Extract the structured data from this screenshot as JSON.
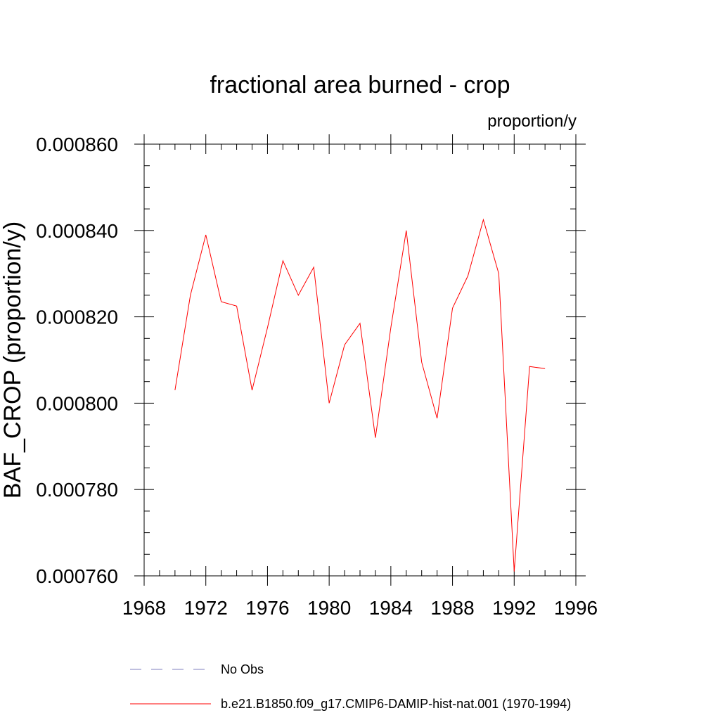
{
  "chart_data": {
    "type": "line",
    "title": "fractional area burned - crop",
    "units_label": "proportion/y",
    "ylabel": "BAF_CROP  (proportion/y)",
    "xlabel": "",
    "xlim": [
      1968,
      1996
    ],
    "ylim": [
      0.00076,
      0.00086
    ],
    "x_ticks": [
      1968,
      1972,
      1976,
      1980,
      1984,
      1988,
      1992,
      1996
    ],
    "x_tick_labels": [
      "1968",
      "1972",
      "1976",
      "1980",
      "1984",
      "1988",
      "1992",
      "1996"
    ],
    "y_ticks": [
      0.00076,
      0.00078,
      0.0008,
      0.00082,
      0.00084,
      0.00086
    ],
    "y_tick_labels": [
      "0.000760",
      "0.000780",
      "0.000800",
      "0.000820",
      "0.000840",
      "0.000860"
    ],
    "grid": false,
    "legend_position": "bottom",
    "legend": [
      {
        "label": "No Obs",
        "color": "#7f7fbf",
        "style": "dashed"
      },
      {
        "label": "b.e21.B1850.f09_g17.CMIP6-DAMIP-hist-nat.001 (1970-1994)",
        "color": "#ff0000",
        "style": "solid"
      }
    ],
    "series": [
      {
        "color": "#ff0000",
        "x": [
          1970,
          1971,
          1972,
          1973,
          1974,
          1975,
          1976,
          1977,
          1978,
          1979,
          1980,
          1981,
          1982,
          1983,
          1984,
          1985,
          1986,
          1987,
          1988,
          1989,
          1990,
          1991,
          1992,
          1993,
          1994
        ],
        "values": [
          0.000803,
          0.000825,
          0.000839,
          0.0008235,
          0.0008225,
          0.000803,
          0.0008175,
          0.000833,
          0.000825,
          0.0008315,
          0.0008,
          0.0008135,
          0.0008185,
          0.000792,
          0.0008175,
          0.00084,
          0.0008095,
          0.0007965,
          0.000822,
          0.0008295,
          0.0008425,
          0.00083,
          0.000761,
          0.0008085,
          0.000808
        ]
      }
    ]
  }
}
